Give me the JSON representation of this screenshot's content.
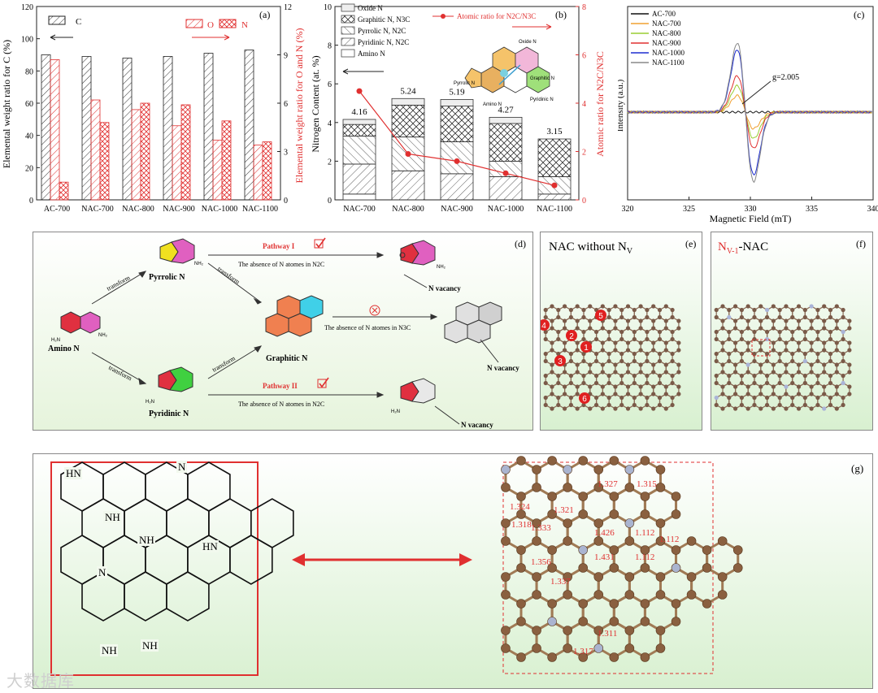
{
  "panel_a": {
    "tag": "(a)",
    "ylabel_left": "Elemental weight ratio for C (%)",
    "ylabel_right": "Elemental weight ratio for O and N (%)",
    "legend": {
      "c": "C",
      "o": "O",
      "n": "N"
    },
    "left_ticks": [
      "0",
      "20",
      "40",
      "60",
      "80",
      "100",
      "120"
    ],
    "right_ticks": [
      "0",
      "3",
      "6",
      "9",
      "12"
    ]
  },
  "panel_b": {
    "tag": "(b)",
    "ylabel_left": "Nitrogen Content (at. %)",
    "ylabel_right": "Atomic ratio for N2C/N3C",
    "legend_line": "Atomic ratio for N2C/N3C",
    "legend": [
      "Oxide N",
      "Graphitic N, N3C",
      "Pyrrolic N, N2C",
      "Pyridinic N, N2C",
      "Amino N"
    ],
    "left_ticks": [
      "0",
      "2",
      "4",
      "6",
      "8",
      "10"
    ],
    "right_ticks": [
      "0",
      "2",
      "4",
      "6",
      "8"
    ],
    "inset_labels": {
      "oxide": "Oxide N",
      "graphitic": "Graphitic N",
      "pyrrolic": "Pyrrolic N",
      "pyridinic": "Pyridinic N",
      "amino": "Amino N"
    }
  },
  "panel_c": {
    "tag": "(c)",
    "xlabel": "Magnetic Field (mT)",
    "ylabel": "Intensity (a.u.)",
    "annotation": "g=2.005",
    "x_ticks": [
      "320",
      "325",
      "330",
      "335",
      "340"
    ],
    "legend": [
      {
        "name": "AC-700",
        "color": "#111111"
      },
      {
        "name": "NAC-700",
        "color": "#f0a030"
      },
      {
        "name": "NAC-800",
        "color": "#9acd32"
      },
      {
        "name": "NAC-900",
        "color": "#e03030"
      },
      {
        "name": "NAC-1000",
        "color": "#1f2fd0"
      },
      {
        "name": "NAC-1100",
        "color": "#888888"
      }
    ]
  },
  "panel_d": {
    "tag": "(d)",
    "amino": "Amino N",
    "pyrrolic": "Pyrrolic N",
    "pyridinic": "Pyridinic N",
    "graphitic": "Graphitic N",
    "transform": "transform",
    "pathway1": "Pathway I",
    "pathway2": "Pathway II",
    "absence": "The absence of N atomes in N2C",
    "absence3": "The absence of N atomes in N3C",
    "vacancy": "N vacancy"
  },
  "panel_e": {
    "tag": "(e)",
    "title": "NAC without NV",
    "markers": [
      "1",
      "2",
      "3",
      "4",
      "5",
      "6"
    ]
  },
  "panel_f": {
    "tag": "(f)",
    "title": "NV-1-NAC"
  },
  "panel_g": {
    "tag": "(g)",
    "hn_labels": [
      "HN",
      "NH",
      "N",
      "NH",
      "HN",
      "N",
      "NH",
      "NH"
    ],
    "bond_labels": [
      "1.324",
      "1.318",
      "1.321",
      "1.333",
      "1.327",
      "1.315",
      "1.426",
      "1.431",
      "1.112",
      "1.112",
      "1.112",
      "1.356",
      "1.337",
      "1.311",
      "1.317"
    ]
  },
  "watermark": "大数据库",
  "chart_data": [
    {
      "type": "bar",
      "title": "",
      "categories": [
        "AC-700",
        "NAC-700",
        "NAC-800",
        "NAC-900",
        "NAC-1000",
        "NAC-1100"
      ],
      "series": [
        {
          "name": "C",
          "axis": "left",
          "values": [
            90,
            89,
            88,
            89,
            91,
            93
          ]
        },
        {
          "name": "O",
          "axis": "right",
          "values": [
            8.7,
            6.2,
            5.6,
            4.6,
            3.7,
            3.4
          ]
        },
        {
          "name": "N",
          "axis": "right",
          "values": [
            1.1,
            4.8,
            6.0,
            5.9,
            4.9,
            3.6
          ]
        }
      ],
      "ylim_left": [
        0,
        120
      ],
      "ylim_right": [
        0,
        12
      ]
    },
    {
      "type": "bar",
      "title": "",
      "categories": [
        "NAC-700",
        "NAC-800",
        "NAC-900",
        "NAC-1000",
        "NAC-1100"
      ],
      "totals": [
        "4.16",
        "5.24",
        "5.19",
        "4.27",
        "3.15"
      ],
      "series": [
        {
          "name": "Amino N",
          "values": [
            0.3,
            0,
            0,
            0,
            0
          ]
        },
        {
          "name": "Pyridinic N, N2C",
          "values": [
            1.55,
            1.5,
            1.35,
            1.2,
            0.3
          ]
        },
        {
          "name": "Pyrrolic N, N2C",
          "values": [
            1.45,
            1.75,
            1.65,
            0.8,
            0.9
          ]
        },
        {
          "name": "Graphitic N, N3C",
          "values": [
            0.6,
            1.65,
            1.85,
            1.95,
            1.95
          ]
        },
        {
          "name": "Oxide N",
          "values": [
            0.26,
            0.34,
            0.34,
            0.32,
            0
          ]
        }
      ],
      "line": {
        "name": "Atomic ratio for N2C/N3C",
        "values": [
          4.5,
          1.9,
          1.6,
          1.1,
          0.6
        ]
      },
      "ylim_left": [
        0,
        10
      ],
      "ylim_right": [
        0,
        8
      ]
    }
  ]
}
